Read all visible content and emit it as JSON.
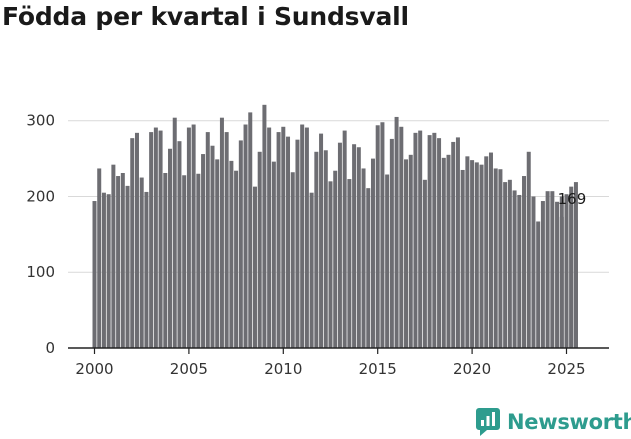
{
  "title": "Födda per kvartal i Sundsvall",
  "brand": {
    "name": "Newsworthy"
  },
  "colors": {
    "bar": "#6d6d72",
    "highlight": "#12a0a0",
    "grid": "#d9d9d9",
    "axis": "#222222",
    "brand": "#2e9c8e"
  },
  "chart_data": {
    "type": "bar",
    "title": "Födda per kvartal i Sundsvall",
    "xlabel": "",
    "ylabel": "",
    "ylim": [
      0,
      330
    ],
    "yticks": [
      0,
      100,
      200,
      300
    ],
    "xticks": [
      "2000",
      "2005",
      "2010",
      "2015",
      "2020",
      "2025"
    ],
    "categories": [
      "2000K1",
      "2000K2",
      "2000K3",
      "2000K4",
      "2001K1",
      "2001K2",
      "2001K3",
      "2001K4",
      "2002K1",
      "2002K2",
      "2002K3",
      "2002K4",
      "2003K1",
      "2003K2",
      "2003K3",
      "2003K4",
      "2004K1",
      "2004K2",
      "2004K3",
      "2004K4",
      "2005K1",
      "2005K2",
      "2005K3",
      "2005K4",
      "2006K1",
      "2006K2",
      "2006K3",
      "2006K4",
      "2007K1",
      "2007K2",
      "2007K3",
      "2007K4",
      "2008K1",
      "2008K2",
      "2008K3",
      "2008K4",
      "2009K1",
      "2009K2",
      "2009K3",
      "2009K4",
      "2010K1",
      "2010K2",
      "2010K3",
      "2010K4",
      "2011K1",
      "2011K2",
      "2011K3",
      "2011K4",
      "2012K1",
      "2012K2",
      "2012K3",
      "2012K4",
      "2013K1",
      "2013K2",
      "2013K3",
      "2013K4",
      "2014K1",
      "2014K2",
      "2014K3",
      "2014K4",
      "2015K1",
      "2015K2",
      "2015K3",
      "2015K4",
      "2016K1",
      "2016K2",
      "2016K3",
      "2016K4",
      "2017K1",
      "2017K2",
      "2017K3",
      "2017K4",
      "2018K1",
      "2018K2",
      "2018K3",
      "2018K4",
      "2019K1",
      "2019K2",
      "2019K3",
      "2019K4",
      "2020K1",
      "2020K2",
      "2020K3",
      "2020K4",
      "2021K1",
      "2021K2",
      "2021K3",
      "2021K4",
      "2022K1",
      "2022K2",
      "2022K3",
      "2022K4",
      "2023K1",
      "2023K2",
      "2023K3",
      "2023K4",
      "2024K1",
      "2024K2",
      "2024K3",
      "2024K4",
      "2025K1",
      "2025K2",
      "2025K3"
    ],
    "values": [
      194,
      237,
      205,
      203,
      242,
      227,
      231,
      214,
      277,
      284,
      225,
      206,
      285,
      291,
      287,
      231,
      263,
      304,
      273,
      228,
      291,
      295,
      230,
      256,
      285,
      267,
      249,
      304,
      285,
      247,
      234,
      274,
      295,
      311,
      213,
      259,
      321,
      291,
      246,
      285,
      292,
      279,
      232,
      275,
      295,
      291,
      205,
      259,
      283,
      261,
      220,
      234,
      271,
      287,
      223,
      269,
      265,
      237,
      211,
      250,
      294,
      298,
      229,
      276,
      305,
      292,
      249,
      255,
      284,
      287,
      222,
      281,
      284,
      277,
      251,
      255,
      272,
      278,
      235,
      253,
      248,
      245,
      242,
      253,
      258,
      237,
      236,
      219,
      222,
      208,
      202,
      227,
      259,
      200,
      167,
      194,
      207,
      207,
      193,
      173,
      187,
      189,
      169
    ],
    "highlight_index": 106,
    "value_labels": [
      {
        "category": "2025K3",
        "text": "169"
      }
    ],
    "background_bars": [
      {
        "category": "2024K4",
        "value": 200
      },
      {
        "category": "2025K1",
        "value": 203
      },
      {
        "category": "2025K2",
        "value": 213
      },
      {
        "category": "2025K3",
        "value": 219
      }
    ]
  }
}
